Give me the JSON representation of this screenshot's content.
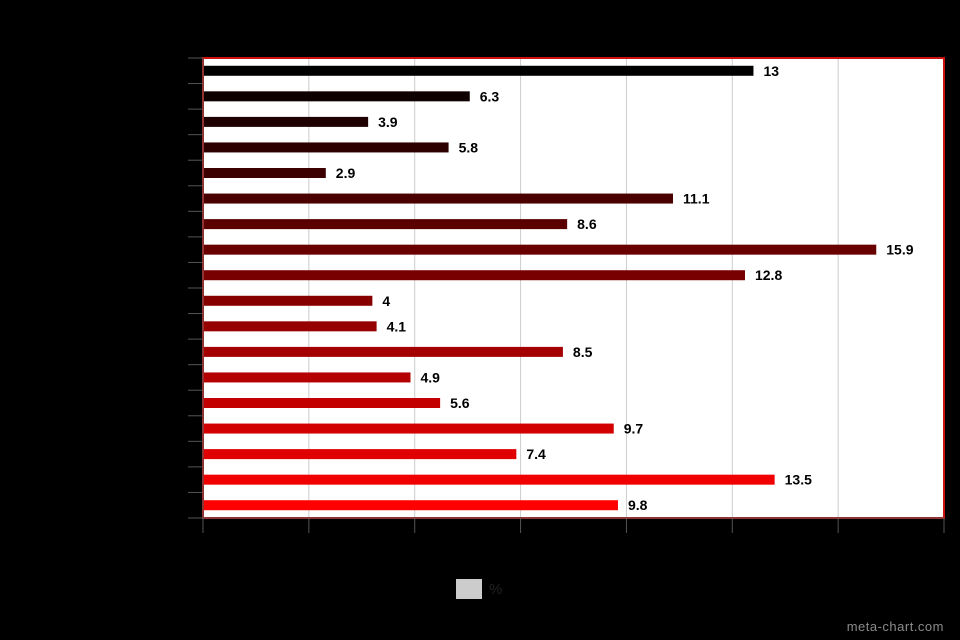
{
  "chart_data": {
    "type": "bar",
    "orientation": "horizontal",
    "title": "",
    "xlabel": "",
    "ylabel": "",
    "xlim": [
      0,
      17.5
    ],
    "grid": true,
    "legend_position": "bottom-center",
    "series": [
      {
        "name": "%",
        "values": [
          13,
          6.3,
          3.9,
          5.8,
          2.9,
          11.1,
          8.6,
          15.9,
          12.8,
          4,
          4.1,
          8.5,
          4.9,
          5.6,
          9.7,
          7.4,
          13.5,
          9.8
        ],
        "labels": [
          "13",
          "6.3",
          "3.9",
          "5.8",
          "2.9",
          "11.1",
          "8.6",
          "15.9",
          "12.8",
          "4",
          "4.1",
          "8.5",
          "4.9",
          "5.6",
          "9.7",
          "7.4",
          "13.5",
          "9.8"
        ]
      }
    ]
  },
  "colors": {
    "background": "#000000",
    "plot_background": "#ffffff",
    "plot_border": "#cc1111",
    "gridline": "#cccccc",
    "axis": "#555555",
    "bar_start": "#000000",
    "bar_end": "#ff0000",
    "legend_swatch": "#cccccc"
  },
  "legend": {
    "label": "%"
  },
  "watermark": "meta-chart.com"
}
